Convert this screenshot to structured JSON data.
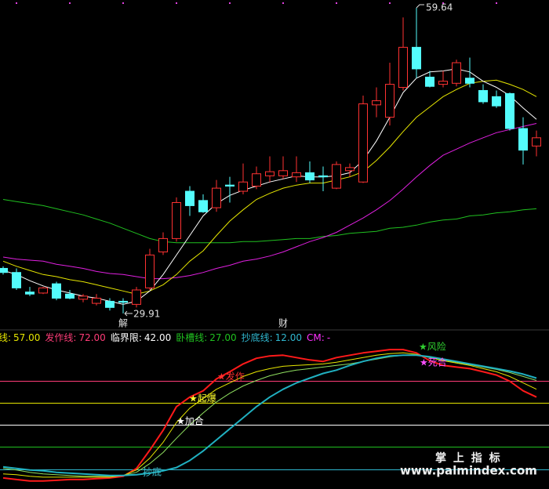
{
  "chart_data": [
    {
      "type": "candlestick",
      "categories": [
        null,
        null,
        null,
        null,
        null,
        null,
        null,
        null,
        null,
        "解",
        null,
        null,
        null,
        null,
        null,
        null,
        null,
        null,
        null,
        null,
        null,
        "财",
        null,
        null,
        null,
        null,
        null,
        null,
        null,
        null,
        null,
        null,
        null,
        null,
        null,
        null,
        null,
        null,
        null,
        null,
        null
      ],
      "open": [
        34.3,
        33.9,
        32.0,
        31.9,
        32.8,
        31.8,
        31.3,
        30.9,
        31.1,
        31.1,
        30.8,
        32.4,
        35.9,
        37.2,
        41.8,
        40.9,
        40.2,
        42.4,
        41.8,
        42.3,
        43.3,
        43.3,
        43.2,
        43.6,
        43.3,
        42.1,
        43.8,
        42.7,
        50.2,
        49.0,
        51.9,
        55.8,
        52.9,
        52.2,
        52.3,
        52.8,
        51.6,
        51.0,
        51.3,
        47.9,
        46.2
      ],
      "high": [
        34.5,
        34.3,
        32.5,
        32.5,
        33.0,
        32.2,
        31.8,
        31.8,
        31.4,
        31.4,
        32.5,
        36.2,
        37.8,
        41.2,
        42.3,
        41.5,
        42.9,
        43.2,
        44.5,
        44.2,
        45.2,
        45.2,
        45.2,
        44.7,
        44.2,
        44.7,
        44.5,
        51.1,
        51.9,
        54.3,
        58.7,
        59.64,
        53.5,
        53.5,
        54.6,
        54.8,
        52.2,
        51.6,
        51.4,
        49.0,
        47.7
      ],
      "low": [
        33.7,
        32.2,
        31.6,
        31.8,
        31.2,
        31.3,
        31.0,
        30.7,
        30.2,
        29.91,
        30.5,
        32.2,
        35.6,
        36.9,
        39.4,
        39.7,
        39.8,
        40.7,
        41.5,
        42.0,
        42.7,
        43.0,
        42.7,
        42.6,
        41.8,
        42.0,
        43.2,
        42.6,
        49.0,
        48.2,
        51.6,
        52.8,
        51.9,
        51.9,
        52.0,
        51.9,
        50.3,
        49.9,
        47.7,
        44.4,
        45.2
      ],
      "close": [
        33.9,
        32.4,
        31.8,
        32.4,
        31.4,
        31.4,
        31.6,
        31.4,
        30.5,
        31.0,
        32.2,
        35.6,
        37.2,
        40.7,
        40.4,
        39.8,
        42.1,
        42.3,
        42.7,
        43.5,
        43.7,
        43.8,
        43.6,
        42.9,
        43.2,
        44.4,
        44.1,
        50.3,
        50.6,
        52.2,
        55.8,
        53.7,
        52.0,
        52.5,
        54.3,
        52.3,
        50.5,
        50.1,
        47.9,
        45.8,
        47.0
      ],
      "up_color": "#ff3232",
      "down_color": "#54fcfc",
      "ylim": [
        28.39,
        60.4
      ],
      "series": [
        {
          "color": "#ffffff",
          "values": [
            34.1,
            33.7,
            33.1,
            32.6,
            32.2,
            31.9,
            31.6,
            31.4,
            31.1,
            30.8,
            31.1,
            32.1,
            33.7,
            35.6,
            37.5,
            39.4,
            40.6,
            41.4,
            41.9,
            42.3,
            42.7,
            43.0,
            43.3,
            43.2,
            43.2,
            43.3,
            43.6,
            44.8,
            46.7,
            49.0,
            51.4,
            52.8,
            53.4,
            53.5,
            53.7,
            53.4,
            52.5,
            51.9,
            51.1,
            49.9,
            48.8
          ]
        },
        {
          "color": "#e6e600",
          "values": [
            35.0,
            34.5,
            34.1,
            33.7,
            33.5,
            33.2,
            33.0,
            32.7,
            32.4,
            32.1,
            31.8,
            32.1,
            32.7,
            33.7,
            35.0,
            36.0,
            37.5,
            38.9,
            40.0,
            41.0,
            41.6,
            42.1,
            42.4,
            42.6,
            42.6,
            42.9,
            43.2,
            43.7,
            44.8,
            46.1,
            47.6,
            49.0,
            50.0,
            51.0,
            51.7,
            52.3,
            52.5,
            52.6,
            52.2,
            51.7,
            51.0
          ]
        },
        {
          "color": "#e020e0",
          "values": [
            35.4,
            35.2,
            35.1,
            35.0,
            34.7,
            34.5,
            34.3,
            34.0,
            33.8,
            33.7,
            33.5,
            33.3,
            33.3,
            33.4,
            33.6,
            33.9,
            34.3,
            34.6,
            35.0,
            35.2,
            35.5,
            35.9,
            36.4,
            36.9,
            37.3,
            37.8,
            38.5,
            39.2,
            40.0,
            40.9,
            42.0,
            43.2,
            44.3,
            45.3,
            45.9,
            46.5,
            47.0,
            47.5,
            47.8,
            48.1,
            48.4
          ]
        },
        {
          "color": "#20c020",
          "values": [
            41.0,
            40.8,
            40.6,
            40.4,
            40.1,
            39.8,
            39.5,
            39.1,
            38.7,
            38.2,
            37.7,
            37.2,
            36.9,
            36.8,
            36.8,
            36.8,
            36.8,
            36.8,
            36.9,
            36.9,
            37.0,
            37.1,
            37.2,
            37.2,
            37.4,
            37.5,
            37.7,
            37.8,
            37.9,
            38.2,
            38.3,
            38.5,
            38.8,
            39.0,
            39.1,
            39.4,
            39.5,
            39.7,
            39.8,
            40.0,
            40.1
          ]
        }
      ]
    },
    {
      "type": "line",
      "ylim": [
        -1.4,
        97.2
      ],
      "series": [
        {
          "color": "#ff1a1a",
          "values": [
            6.1,
            5.0,
            4.0,
            4.0,
            4.5,
            5.0,
            5.0,
            5.6,
            6.1,
            7.2,
            12.5,
            24.9,
            38.3,
            54.3,
            60.8,
            65.0,
            73.1,
            77.9,
            83.2,
            87.0,
            88.6,
            89.1,
            87.5,
            85.9,
            84.9,
            87.5,
            89.1,
            90.7,
            91.8,
            92.9,
            92.9,
            90.7,
            85.4,
            82.2,
            81.1,
            80.0,
            77.9,
            75.7,
            71.5,
            65.0,
            60.8
          ]
        },
        {
          "color": "#e6e600",
          "values": [
            8.8,
            8.3,
            7.2,
            6.6,
            6.6,
            6.6,
            6.6,
            6.6,
            6.6,
            7.7,
            11.5,
            19.5,
            30.2,
            43.6,
            53.3,
            59.7,
            66.1,
            70.4,
            74.7,
            77.9,
            80.0,
            81.6,
            82.2,
            82.7,
            83.2,
            84.3,
            85.9,
            87.5,
            89.1,
            90.2,
            90.7,
            89.7,
            87.5,
            85.4,
            83.8,
            82.2,
            80.0,
            77.9,
            74.7,
            70.4,
            66.1
          ]
        },
        {
          "color": "#90e060",
          "values": [
            12.5,
            11.5,
            9.9,
            8.8,
            8.3,
            7.7,
            7.2,
            7.2,
            7.2,
            7.7,
            9.9,
            15.8,
            23.3,
            32.9,
            42.0,
            50.0,
            57.5,
            63.4,
            68.3,
            72.0,
            75.2,
            77.4,
            79.0,
            80.0,
            81.1,
            82.2,
            83.2,
            84.9,
            86.5,
            88.1,
            89.1,
            89.1,
            87.5,
            85.9,
            84.3,
            82.7,
            81.1,
            79.5,
            77.4,
            74.7,
            72.0
          ]
        },
        {
          "color": "#20b0c0",
          "values": [
            13.6,
            12.5,
            11.5,
            10.9,
            9.9,
            9.3,
            8.8,
            8.3,
            7.7,
            7.7,
            8.3,
            9.3,
            10.9,
            13.1,
            17.9,
            24.3,
            31.8,
            39.3,
            46.8,
            54.3,
            60.8,
            66.1,
            70.4,
            73.6,
            76.8,
            79.0,
            82.2,
            84.9,
            87.0,
            88.6,
            89.1,
            89.1,
            88.1,
            86.5,
            84.9,
            83.2,
            81.6,
            80.0,
            78.4,
            76.3,
            73.6
          ]
        }
      ],
      "levels": [
        {
          "name": "线:",
          "value": 57,
          "label": "57.00",
          "color": "#e6e600"
        },
        {
          "name": "发作线:",
          "value": 72,
          "label": "72.00",
          "color": "#ff3c78"
        },
        {
          "name": "临界限:",
          "value": 42,
          "label": "42.00",
          "color": "#ffffff"
        },
        {
          "name": "卧槽线:",
          "value": 27,
          "label": "27.00",
          "color": "#20c020"
        },
        {
          "name": "抄底线:",
          "value": 12,
          "label": "12.00",
          "color": "#30b8d0"
        }
      ],
      "cm": {
        "name": "CM:",
        "label": "-",
        "color": "#ff30ff"
      },
      "annotations": [
        {
          "text": "★加合"
        },
        {
          "text": "★起爆"
        },
        {
          "text": "★发作"
        },
        {
          "text": "抄底"
        },
        {
          "text": "★风险"
        },
        {
          "text": "★死合"
        }
      ]
    }
  ],
  "watermark": {
    "title": "掌 上 指 标",
    "url": "www.palmindex.com"
  }
}
